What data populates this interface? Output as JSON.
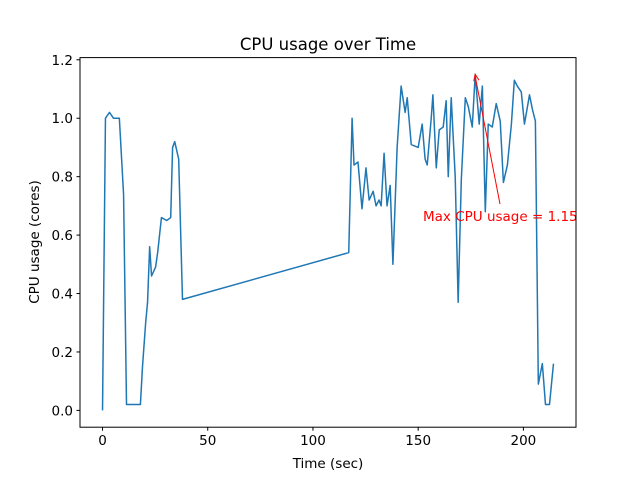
{
  "chart_data": {
    "type": "line",
    "title": "CPU usage over Time",
    "xlabel": "Time (sec)",
    "ylabel": "CPU usage (cores)",
    "color": "#1f77b4",
    "x": [
      0,
      1.4,
      3.3,
      5.2,
      8,
      10,
      11.4,
      13.3,
      15.2,
      18,
      19,
      20.5,
      21.4,
      22.4,
      23.3,
      25.2,
      26.2,
      28,
      30.5,
      32.4,
      33.3,
      34.3,
      36.2,
      38,
      117,
      118.6,
      119.5,
      121.4,
      123.3,
      125.2,
      126.7,
      128.6,
      130,
      131.4,
      132.4,
      133.8,
      135.2,
      136.7,
      138,
      140,
      141.9,
      143.8,
      144.8,
      146.7,
      150,
      151.9,
      153.3,
      154.3,
      156.2,
      157,
      158.6,
      160,
      161.9,
      163.3,
      164.3,
      165.7,
      167.6,
      169,
      170.5,
      172.4,
      173.8,
      175.7,
      177.1,
      179,
      180.5,
      181.9,
      183.3,
      185.2,
      187.1,
      189,
      190.5,
      192.4,
      194.3,
      195.7,
      197.1,
      199,
      200.5,
      202.9,
      204.3,
      205.7,
      207.1,
      209,
      210.5,
      212.4,
      214.3
    ],
    "values": [
      0,
      1.0,
      1.02,
      1.0,
      1.0,
      0.74,
      0.02,
      0.02,
      0.02,
      0.02,
      0.15,
      0.3,
      0.37,
      0.56,
      0.46,
      0.49,
      0.54,
      0.66,
      0.65,
      0.66,
      0.9,
      0.92,
      0.86,
      0.38,
      0.54,
      1.0,
      0.84,
      0.85,
      0.69,
      0.83,
      0.72,
      0.75,
      0.7,
      0.72,
      0.7,
      0.88,
      0.7,
      0.77,
      0.5,
      0.9,
      1.11,
      1.02,
      1.07,
      0.91,
      0.9,
      0.98,
      0.86,
      0.84,
      1.0,
      1.08,
      0.83,
      0.96,
      0.97,
      1.06,
      0.8,
      1.07,
      0.8,
      0.37,
      0.79,
      1.07,
      1.04,
      0.97,
      1.15,
      0.98,
      1.11,
      0.68,
      0.98,
      0.97,
      1.05,
      0.99,
      0.78,
      0.84,
      0.98,
      1.13,
      1.11,
      1.09,
      0.98,
      1.08,
      1.03,
      0.99,
      0.09,
      0.16,
      0.02,
      0.02,
      0.16
    ],
    "xlim": [
      -10.7,
      225.0
    ],
    "ylim": [
      -0.0575,
      1.2075
    ],
    "xticks": [
      0,
      50,
      100,
      150,
      200
    ],
    "yticks": [
      {
        "value": 0,
        "label": "0.0"
      },
      0.2,
      0.4,
      0.6,
      0.8,
      {
        "value": 1,
        "label": "1.0"
      },
      1.2
    ],
    "annotation": {
      "text": "Max CPU usage = 1.15",
      "x": 177.1,
      "y": 1.15,
      "color": "red"
    }
  }
}
